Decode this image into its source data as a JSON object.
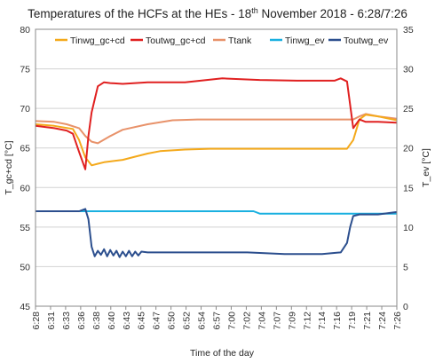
{
  "chart_data": {
    "type": "line",
    "title": "Temperatures of the HCFs at the HEs - 18th November 2018 - 6:28/7:26",
    "title_parts": {
      "before": "Temperatures of the HCFs at the HEs - 18",
      "sup": "th",
      "after": " November 2018 - 6:28/7:26"
    },
    "xlabel": "Time of the day",
    "ylabel_left": "T_gc+cd [°C]",
    "ylabel_right": "T_ev [°C]",
    "ylim_left": [
      45,
      80
    ],
    "ylim_right": [
      0,
      35
    ],
    "yticks_left": [
      "45",
      "50",
      "55",
      "60",
      "65",
      "70",
      "75",
      "80"
    ],
    "yticks_right": [
      "0",
      "5",
      "10",
      "15",
      "20",
      "25",
      "30",
      "35"
    ],
    "xlim": [
      0,
      58
    ],
    "x_tick_labels": [
      "6:28",
      "6:31",
      "6:33",
      "6:36",
      "6:38",
      "6:40",
      "6:43",
      "6:45",
      "6:47",
      "6:50",
      "6:52",
      "6:54",
      "6:57",
      "7:00",
      "7:02",
      "7:04",
      "7:07",
      "7:09",
      "7:12",
      "7:14",
      "7:16",
      "7:19",
      "7:21",
      "7:24",
      "7:26"
    ],
    "grid": true,
    "legend_position": "top",
    "series": [
      {
        "name": "Tinwg_gc+cd",
        "axis": "left",
        "color": "#f4a91b",
        "x": [
          0,
          3,
          6,
          7,
          8,
          9,
          10,
          11,
          12,
          14,
          16,
          18,
          20,
          24,
          28,
          34,
          40,
          46,
          50,
          51,
          52,
          53,
          55,
          58
        ],
        "y": [
          68.0,
          67.8,
          67.4,
          66.0,
          63.8,
          62.8,
          63.0,
          63.2,
          63.3,
          63.5,
          63.9,
          64.3,
          64.6,
          64.8,
          64.9,
          64.9,
          64.9,
          64.9,
          64.9,
          66.0,
          68.6,
          69.2,
          69.0,
          68.5
        ]
      },
      {
        "name": "Toutwg_gc+cd",
        "axis": "left",
        "color": "#e02020",
        "x": [
          0,
          3,
          5,
          6,
          7,
          8,
          8.5,
          9,
          10,
          11,
          12,
          14,
          18,
          24,
          30,
          36,
          42,
          46,
          48,
          49,
          50,
          51,
          52,
          53,
          55,
          58
        ],
        "y": [
          67.8,
          67.5,
          67.2,
          66.8,
          64.5,
          62.3,
          66.5,
          69.5,
          72.8,
          73.3,
          73.2,
          73.1,
          73.3,
          73.3,
          73.8,
          73.6,
          73.5,
          73.5,
          73.5,
          73.8,
          73.4,
          67.5,
          68.6,
          68.3,
          68.3,
          68.2
        ]
      },
      {
        "name": "Ttank",
        "axis": "left",
        "color": "#e8926a",
        "x": [
          0,
          3,
          5,
          7,
          8,
          9,
          10,
          12,
          14,
          18,
          22,
          26,
          30,
          40,
          45,
          50,
          51,
          52,
          53,
          55,
          58
        ],
        "y": [
          68.4,
          68.3,
          68.0,
          67.5,
          66.5,
          65.8,
          65.6,
          66.5,
          67.3,
          68.0,
          68.5,
          68.6,
          68.6,
          68.6,
          68.6,
          68.6,
          68.6,
          69.0,
          69.3,
          69.0,
          68.7
        ]
      },
      {
        "name": "Tinwg_ev",
        "axis": "right",
        "color": "#1ab0e0",
        "x": [
          0,
          10,
          20,
          30,
          35,
          36,
          40,
          50,
          58
        ],
        "y": [
          12.0,
          12.0,
          12.0,
          12.0,
          12.0,
          11.7,
          11.7,
          11.7,
          11.7
        ]
      },
      {
        "name": "Toutwg_ev",
        "axis": "right",
        "color": "#2c4f8e",
        "x": [
          0,
          4,
          7,
          8,
          8.5,
          9,
          9.5,
          10,
          10.5,
          11,
          11.5,
          12,
          12.5,
          13,
          13.5,
          14,
          14.5,
          15,
          15.5,
          16,
          16.5,
          17,
          18,
          20,
          24,
          28,
          34,
          40,
          46,
          49,
          50,
          50.5,
          51,
          52,
          53,
          55,
          58
        ],
        "y": [
          12.0,
          12.0,
          12.0,
          12.3,
          11.0,
          7.5,
          6.3,
          7.0,
          6.5,
          7.2,
          6.3,
          7.1,
          6.4,
          7.0,
          6.2,
          6.9,
          6.3,
          7.0,
          6.3,
          6.9,
          6.4,
          6.9,
          6.8,
          6.8,
          6.8,
          6.8,
          6.8,
          6.6,
          6.6,
          6.8,
          8.0,
          10.0,
          11.4,
          11.6,
          11.6,
          11.6,
          11.9
        ]
      }
    ]
  }
}
